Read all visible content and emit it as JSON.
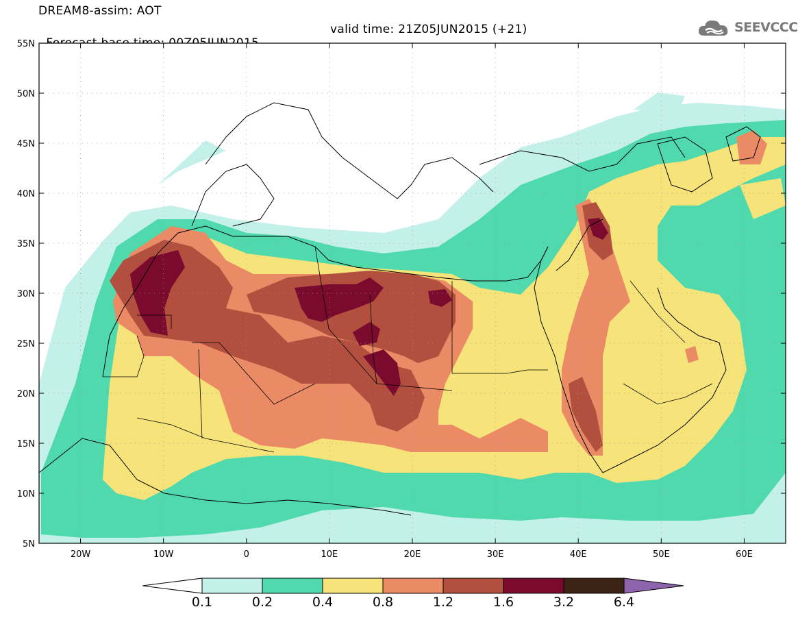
{
  "header": {
    "line1": "DREAM8-assim: AOT",
    "base": "Forecast base time: 00Z05JUN2015",
    "valid": "valid time: 21Z05JUN2015 (+21)"
  },
  "logo": {
    "text": "SEEVCCC",
    "icon": "cloud-icon",
    "color": "#7a7a7a"
  },
  "map": {
    "lat_labels": [
      "55N",
      "50N",
      "45N",
      "40N",
      "35N",
      "30N",
      "25N",
      "20N",
      "15N",
      "10N",
      "5N"
    ],
    "lat_values": [
      55,
      50,
      45,
      40,
      35,
      30,
      25,
      20,
      15,
      10,
      5
    ],
    "lon_labels": [
      "20W",
      "10W",
      "0",
      "10E",
      "20E",
      "30E",
      "40E",
      "50E",
      "60E"
    ],
    "lon_values": [
      -20,
      -10,
      0,
      10,
      20,
      30,
      40,
      50,
      60
    ],
    "lon_range": [
      -25,
      65
    ],
    "lat_range": [
      5,
      55
    ]
  },
  "legend": {
    "labels": [
      "0.1",
      "0.2",
      "0.4",
      "0.8",
      "1.2",
      "1.6",
      "3.2",
      "6.4"
    ],
    "colors": [
      "#c4f0ea",
      "#4fd9ad",
      "#f6e37a",
      "#eb8b66",
      "#b24f3e",
      "#7b0a2f",
      "#3c2415",
      "#8e64ad"
    ],
    "under_color": "#ffffff"
  }
}
